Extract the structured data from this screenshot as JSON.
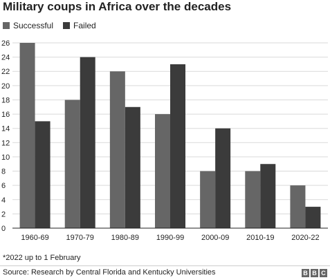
{
  "header": {
    "title": "Military coups in Africa over the decades"
  },
  "colors": {
    "successful": "#666666",
    "failed": "#3b3b3b",
    "grid": "#d9d9d9",
    "axis": "#222222"
  },
  "chart_data": {
    "type": "bar",
    "title": "Military coups in Africa over the decades",
    "categories": [
      "1960-69",
      "1970-79",
      "1980-89",
      "1990-99",
      "2000-09",
      "2010-19",
      "2020-22"
    ],
    "series": [
      {
        "name": "Successful",
        "values": [
          26,
          18,
          22,
          16,
          8,
          8,
          6
        ]
      },
      {
        "name": "Failed",
        "values": [
          15,
          24,
          17,
          23,
          14,
          9,
          3
        ]
      }
    ],
    "ylim": [
      0,
      26
    ],
    "yticks": [
      0,
      2,
      4,
      6,
      8,
      10,
      12,
      14,
      16,
      18,
      20,
      22,
      24,
      26
    ],
    "grid": true,
    "legend": "top-left"
  },
  "footer": {
    "note": "*2022 up to 1 February",
    "source": "Source: Research by Central Florida and Kentucky Universities",
    "logo": [
      "B",
      "B",
      "C"
    ]
  }
}
